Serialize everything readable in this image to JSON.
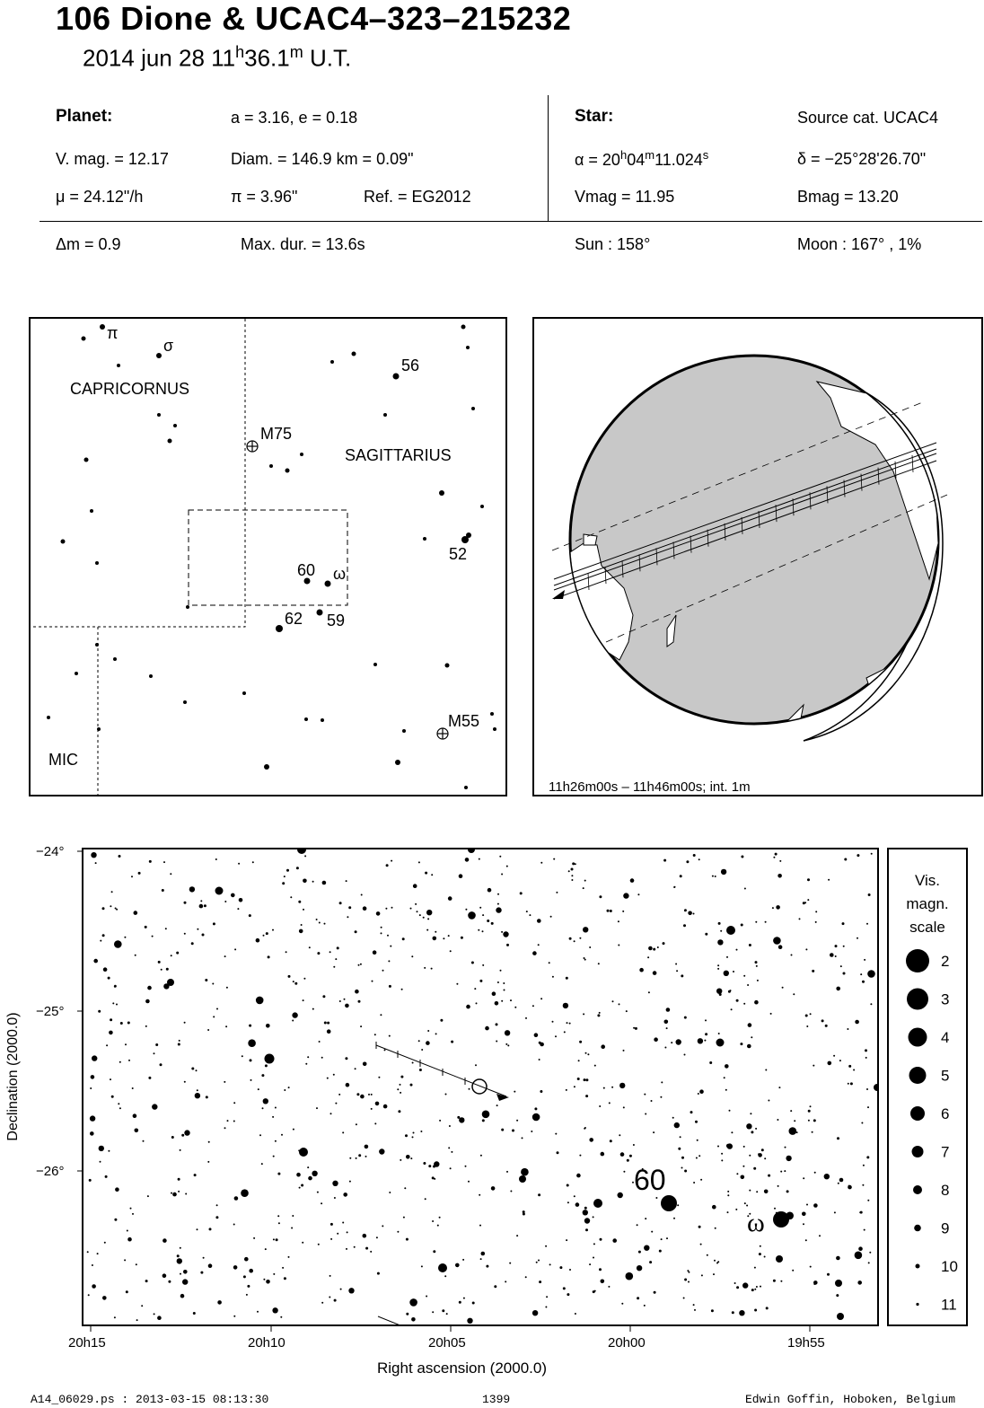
{
  "header": {
    "title": "106 Dione  &  UCAC4–323–215232",
    "date": "2014 jun 28  11",
    "hour_sup": "h",
    "minute": "36.1",
    "minute_sup": "m",
    "ut": " U.T."
  },
  "info": {
    "planet_label": "Planet:",
    "orbit": "a = 3.16, e = 0.18",
    "vmag": "V. mag. = 12.17",
    "diam": "Diam. = 146.9 km = 0.09\"",
    "mu": "μ =  24.12\"/h",
    "pi": "π =  3.96\"",
    "ref": "Ref. = EG2012",
    "star_label": "Star:",
    "source": "Source cat.  UCAC4",
    "alpha_a": "α = 20",
    "alpha_h": "h",
    "alpha_b": "04",
    "alpha_m": "m",
    "alpha_c": "11.024",
    "alpha_s": "s",
    "delta": "δ = −25°28'26.70\"",
    "star_vmag": "Vmag = 11.95",
    "star_bmag": "Bmag = 13.20",
    "dm": "Δm = 0.9",
    "maxdur": "Max. dur. = 13.6s",
    "sun": "Sun : 158°",
    "moon": "Moon : 167° ,  1%"
  },
  "finder": {
    "constellations": [
      "CAPRICORNUS",
      "SAGITTARIUS",
      "MIC"
    ],
    "objects": [
      "M75",
      "M55"
    ],
    "star_labels": [
      "π",
      "σ",
      "56",
      "52",
      "60",
      "ω",
      "62",
      "59"
    ]
  },
  "globe": {
    "caption": "11h26m00s – 11h46m00s; int.  1m"
  },
  "chart": {
    "y_axis_label": "Declination (2000.0)",
    "x_axis_label": "Right ascension (2000.0)",
    "y_ticks": [
      "−24°",
      "−25°",
      "−26°"
    ],
    "x_ticks": [
      "20h15",
      "20h10",
      "20h05",
      "20h00",
      "19h55"
    ],
    "star_labels": [
      "60",
      "ω"
    ]
  },
  "legend": {
    "title_lines": [
      "Vis.",
      "magn.",
      "scale"
    ],
    "magnitudes": [
      "2",
      "3",
      "4",
      "5",
      "6",
      "7",
      "8",
      "9",
      "10",
      "11"
    ]
  },
  "footer": {
    "file": "A14_06029.ps : 2013-03-15 08:13:30",
    "number": "1399",
    "author": "Edwin Goffin, Hoboken, Belgium"
  }
}
